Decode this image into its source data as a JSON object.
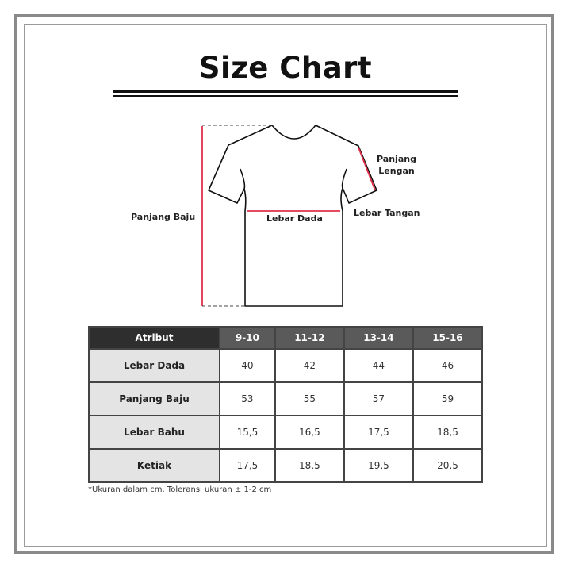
{
  "title": "Size Chart",
  "diagram": {
    "labels": {
      "panjang_baju": "Panjang Baju",
      "lebar_dada": "Lebar Dada",
      "panjang_lengan": "Panjang Lengan",
      "lebar_tangan": "Lebar Tangan"
    },
    "colors": {
      "measure_line": "#e0304a",
      "outline": "#111111"
    }
  },
  "table": {
    "headers": [
      "Atribut",
      "9-10",
      "11-12",
      "13-14",
      "15-16"
    ],
    "rows": [
      {
        "attr": "Lebar Dada",
        "values": [
          "40",
          "42",
          "44",
          "46"
        ]
      },
      {
        "attr": "Panjang Baju",
        "values": [
          "53",
          "55",
          "57",
          "59"
        ]
      },
      {
        "attr": "Lebar Bahu",
        "values": [
          "15,5",
          "16,5",
          "17,5",
          "18,5"
        ]
      },
      {
        "attr": "Ketiak",
        "values": [
          "17,5",
          "18,5",
          "19,5",
          "20,5"
        ]
      }
    ]
  },
  "note": "*Ukuran dalam cm. Toleransi ukuran ± 1-2 cm"
}
